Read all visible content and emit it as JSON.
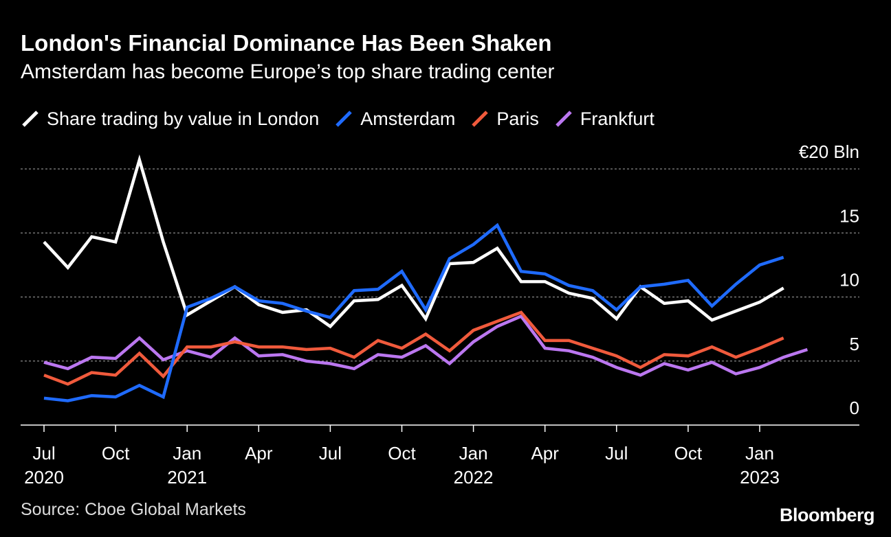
{
  "header": {
    "title": "London's Financial Dominance Has Been Shaken",
    "subtitle": "Amsterdam has become Europe’s top share trading center"
  },
  "footer": {
    "source": "Source: Cboe Global Markets",
    "brand": "Bloomberg"
  },
  "colors": {
    "background": "#000000",
    "London": "#ffffff",
    "Amsterdam": "#1f6bff",
    "Paris": "#f05a3c",
    "Frankfurt": "#bb77f0",
    "grid": "#8a8a8a",
    "axis": "#ffffff"
  },
  "chart_data": {
    "type": "line",
    "title": "London's Financial Dominance Has Been Shaken",
    "subtitle": "Amsterdam has become Europe’s top share trading center",
    "xlabel": "",
    "ylabel": "€ Bln",
    "ylim": [
      0,
      20
    ],
    "y_ticks": [
      0,
      5,
      10,
      15,
      20
    ],
    "y_tick_labels": [
      "0",
      "5",
      "10",
      "15",
      "€20 Bln"
    ],
    "grid": true,
    "legend": "top-left",
    "x": [
      "2020-07",
      "2020-08",
      "2020-09",
      "2020-10",
      "2020-11",
      "2020-12",
      "2021-01",
      "2021-02",
      "2021-03",
      "2021-04",
      "2021-05",
      "2021-06",
      "2021-07",
      "2021-08",
      "2021-09",
      "2021-10",
      "2021-11",
      "2021-12",
      "2022-01",
      "2022-02",
      "2022-03",
      "2022-04",
      "2022-05",
      "2022-06",
      "2022-07",
      "2022-08",
      "2022-09",
      "2022-10",
      "2022-11",
      "2022-12",
      "2023-01",
      "2023-02",
      "2023-03"
    ],
    "x_ticks": [
      {
        "index": 0,
        "month": "Jul",
        "year": "2020"
      },
      {
        "index": 3,
        "month": "Oct",
        "year": ""
      },
      {
        "index": 6,
        "month": "Jan",
        "year": "2021"
      },
      {
        "index": 9,
        "month": "Apr",
        "year": ""
      },
      {
        "index": 12,
        "month": "Jul",
        "year": ""
      },
      {
        "index": 15,
        "month": "Oct",
        "year": ""
      },
      {
        "index": 18,
        "month": "Jan",
        "year": "2022"
      },
      {
        "index": 21,
        "month": "Apr",
        "year": ""
      },
      {
        "index": 24,
        "month": "Jul",
        "year": ""
      },
      {
        "index": 27,
        "month": "Oct",
        "year": ""
      },
      {
        "index": 30,
        "month": "Jan",
        "year": "2023"
      }
    ],
    "series": [
      {
        "name": "Share trading by value in London",
        "key": "London",
        "values": [
          14.3,
          12.3,
          14.7,
          14.3,
          20.7,
          14.3,
          8.6,
          9.7,
          10.8,
          9.4,
          8.8,
          9.0,
          7.7,
          9.7,
          9.8,
          10.9,
          8.3,
          12.6,
          12.7,
          13.8,
          11.2,
          11.2,
          10.3,
          9.9,
          8.3,
          10.8,
          9.5,
          9.7,
          8.2,
          8.9,
          9.6,
          10.7,
          null
        ]
      },
      {
        "name": "Amsterdam",
        "key": "Amsterdam",
        "values": [
          2.1,
          1.9,
          2.3,
          2.2,
          3.1,
          2.2,
          9.2,
          9.9,
          10.8,
          9.7,
          9.5,
          8.9,
          8.4,
          10.5,
          10.6,
          12.0,
          9.0,
          13.0,
          14.1,
          15.6,
          12.0,
          11.8,
          10.9,
          10.5,
          9.0,
          10.8,
          11.0,
          11.3,
          9.3,
          11.0,
          12.5,
          13.1,
          null
        ]
      },
      {
        "name": "Paris",
        "key": "Paris",
        "values": [
          3.9,
          3.2,
          4.1,
          3.9,
          5.6,
          3.8,
          6.1,
          6.1,
          6.5,
          6.1,
          6.1,
          5.9,
          6.0,
          5.3,
          6.6,
          6.0,
          7.1,
          5.8,
          7.4,
          8.1,
          8.8,
          6.6,
          6.6,
          6.0,
          5.4,
          4.5,
          5.5,
          5.4,
          6.1,
          5.3,
          6.0,
          6.8,
          null
        ]
      },
      {
        "name": "Frankfurt",
        "key": "Frankfurt",
        "values": [
          4.9,
          4.4,
          5.3,
          5.2,
          6.8,
          5.1,
          5.8,
          5.3,
          6.8,
          5.4,
          5.5,
          5.0,
          4.8,
          4.4,
          5.5,
          5.3,
          6.2,
          4.8,
          6.5,
          7.7,
          8.5,
          6.0,
          5.8,
          5.3,
          4.5,
          3.9,
          4.8,
          4.3,
          4.9,
          4.0,
          4.5,
          5.3,
          5.9
        ]
      }
    ]
  }
}
